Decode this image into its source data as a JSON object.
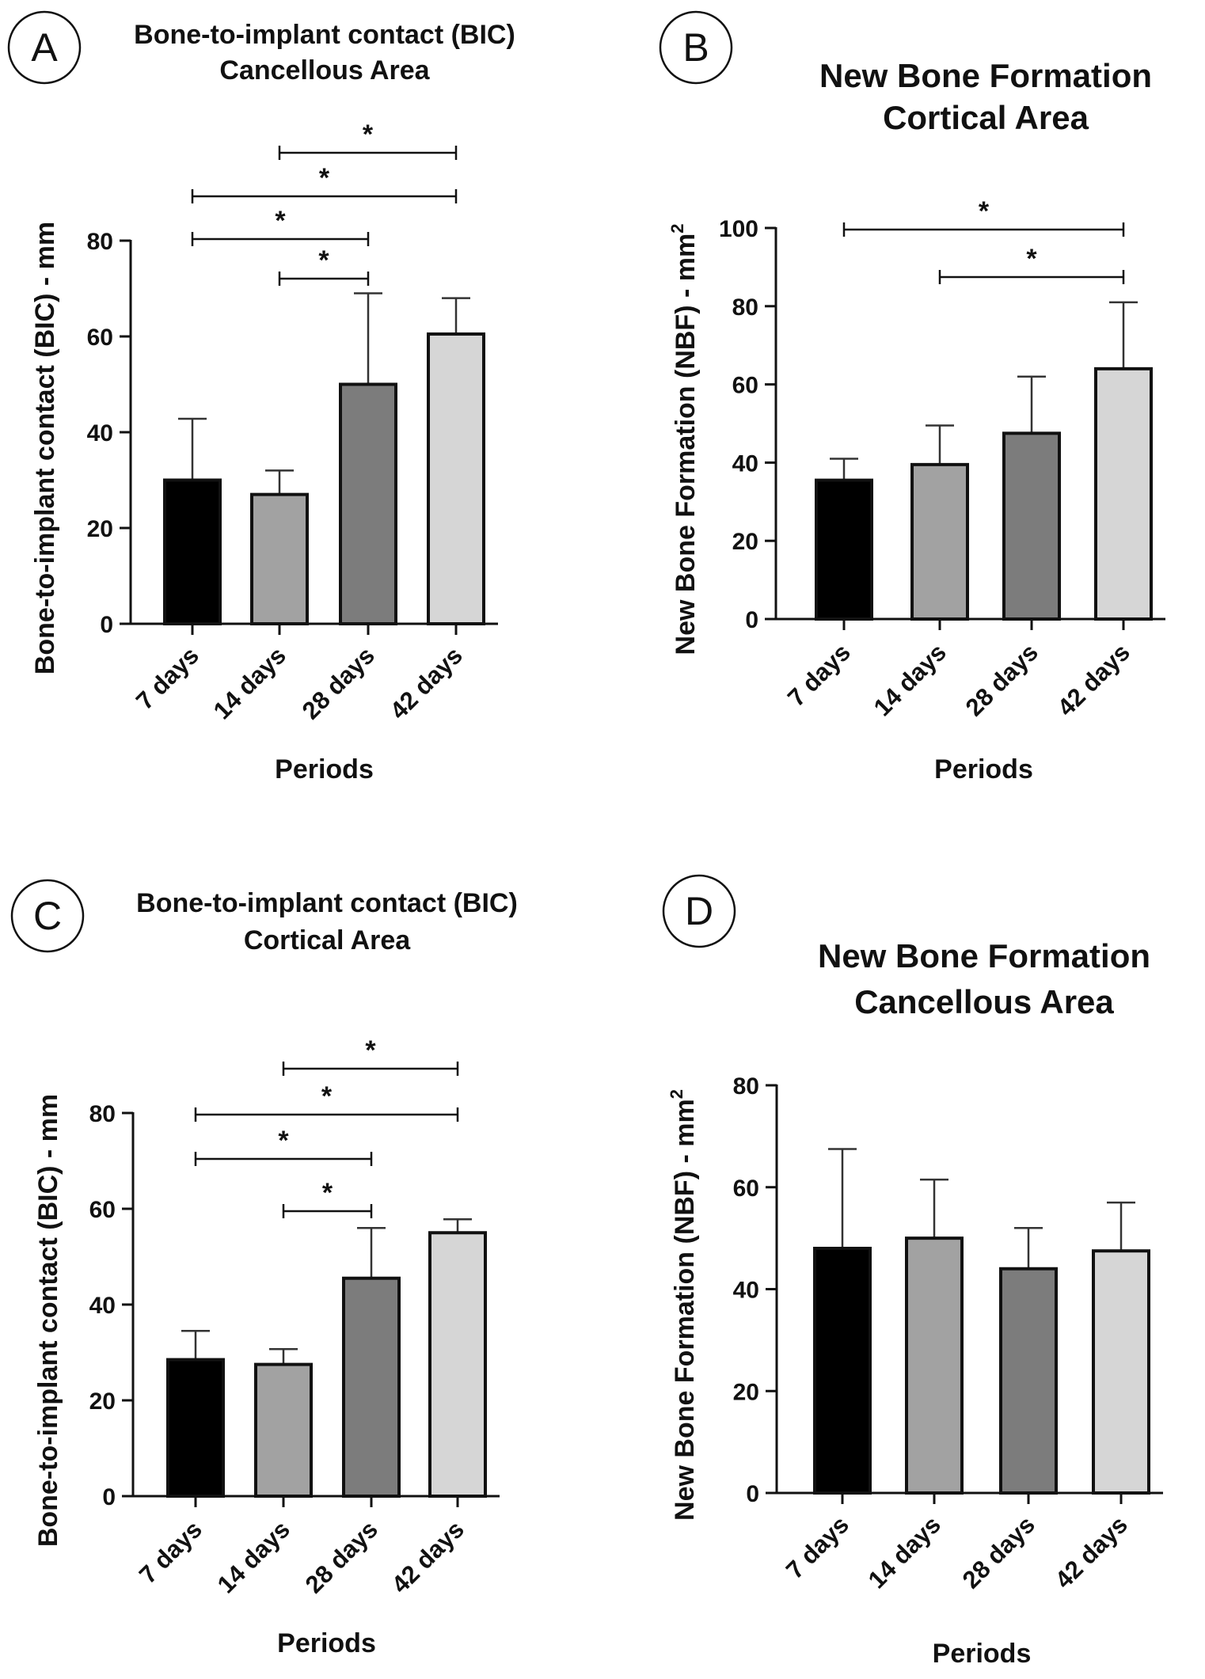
{
  "chart_data": [
    {
      "panel": "A",
      "type": "bar",
      "title": [
        "Bone-to-implant contact (BIC)",
        "Cancellous Area"
      ],
      "ylabel": "Bone-to-implant contact (BIC) - mm",
      "ylabel_sup": "",
      "xlabel": "Periods",
      "categories": [
        "7 days",
        "14 days",
        "28 days",
        "42 days"
      ],
      "values": [
        30,
        27,
        50,
        60.5
      ],
      "errors": [
        12.8,
        5,
        19,
        7.5
      ],
      "colors": [
        "#000000",
        "#a2a2a2",
        "#7c7c7c",
        "#d6d6d6"
      ],
      "ylim": [
        0,
        80
      ],
      "yticks": [
        "0",
        "20",
        "40",
        "60",
        "80"
      ],
      "significance": [
        {
          "from": 1,
          "to": 3,
          "label": "*"
        },
        {
          "from": 0,
          "to": 3,
          "label": "*"
        },
        {
          "from": 0,
          "to": 2,
          "label": "*"
        },
        {
          "from": 1,
          "to": 2,
          "label": "*"
        }
      ]
    },
    {
      "panel": "B",
      "type": "bar",
      "title": [
        "New Bone Formation",
        "Cortical Area"
      ],
      "ylabel": "New Bone Formation (NBF) - mm",
      "ylabel_sup": "2",
      "xlabel": "Periods",
      "categories": [
        "7 days",
        "14 days",
        "28 days",
        "42 days"
      ],
      "values": [
        35.5,
        39.5,
        47.5,
        64
      ],
      "errors": [
        5.5,
        10,
        14.5,
        17
      ],
      "colors": [
        "#000000",
        "#a2a2a2",
        "#7c7c7c",
        "#d6d6d6"
      ],
      "ylim": [
        0,
        100
      ],
      "yticks": [
        "0",
        "20",
        "40",
        "60",
        "80",
        "100"
      ],
      "significance": [
        {
          "from": 0,
          "to": 3,
          "label": "*"
        },
        {
          "from": 1,
          "to": 3,
          "label": "*"
        }
      ]
    },
    {
      "panel": "C",
      "type": "bar",
      "title": [
        "Bone-to-implant contact (BIC)",
        "Cortical Area"
      ],
      "ylabel": "Bone-to-implant contact (BIC) - mm",
      "ylabel_sup": "",
      "xlabel": "Periods",
      "categories": [
        "7 days",
        "14 days",
        "28 days",
        "42 days"
      ],
      "values": [
        28.5,
        27.5,
        45.5,
        55
      ],
      "errors": [
        6,
        3.2,
        10.5,
        2.8
      ],
      "colors": [
        "#000000",
        "#a2a2a2",
        "#7c7c7c",
        "#d6d6d6"
      ],
      "ylim": [
        0,
        80
      ],
      "yticks": [
        "0",
        "20",
        "40",
        "60",
        "80"
      ],
      "significance": [
        {
          "from": 1,
          "to": 3,
          "label": "*"
        },
        {
          "from": 0,
          "to": 3,
          "label": "*"
        },
        {
          "from": 0,
          "to": 2,
          "label": "*"
        },
        {
          "from": 1,
          "to": 2,
          "label": "*"
        }
      ]
    },
    {
      "panel": "D",
      "type": "bar",
      "title": [
        "New Bone Formation",
        "Cancellous Area"
      ],
      "ylabel": "New Bone Formation (NBF) - mm",
      "ylabel_sup": "2",
      "xlabel": "Periods",
      "categories": [
        "7 days",
        "14 days",
        "28 days",
        "42 days"
      ],
      "values": [
        48,
        50,
        44,
        47.5
      ],
      "errors": [
        19.5,
        11.5,
        8,
        9.5
      ],
      "colors": [
        "#000000",
        "#a2a2a2",
        "#7c7c7c",
        "#d6d6d6"
      ],
      "ylim": [
        0,
        80
      ],
      "yticks": [
        "0",
        "20",
        "40",
        "60",
        "80"
      ],
      "significance": []
    }
  ]
}
